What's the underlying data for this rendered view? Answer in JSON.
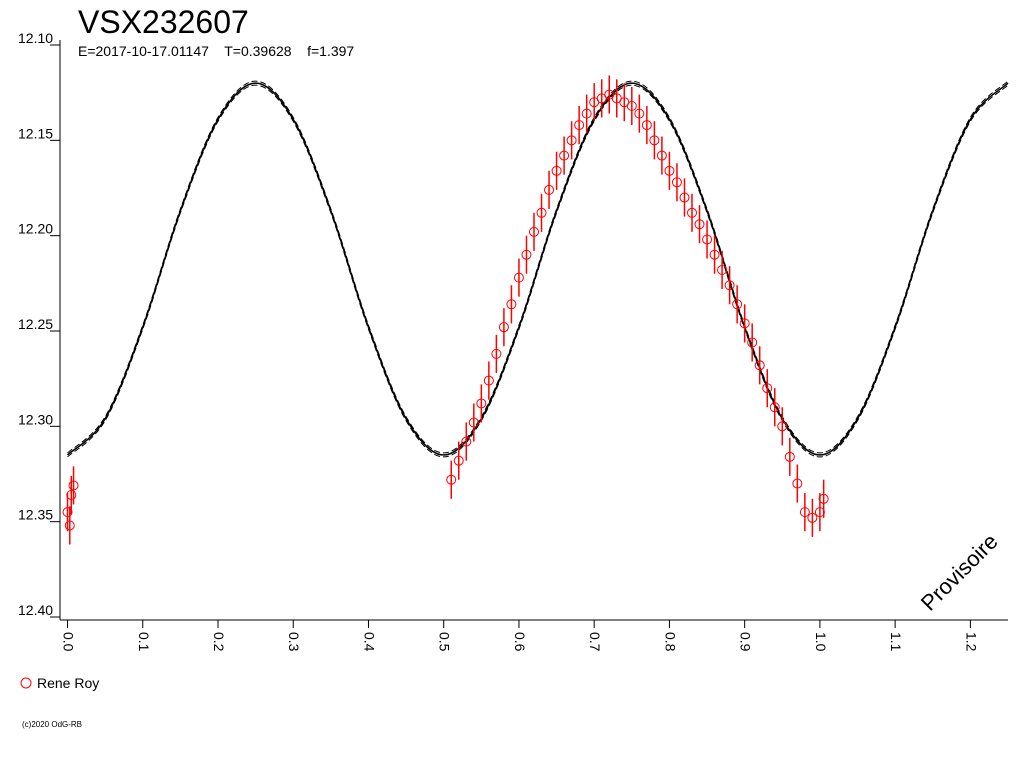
{
  "chart_data": {
    "type": "scatter",
    "title": "VSX232607",
    "subtitle": "E=2017-10-17.01147    T=0.39628    f=1.397",
    "annotation": "Provisoire",
    "footer": "(c)2020 OdG-RB",
    "xlim": [
      -0.01,
      1.25
    ],
    "ylim": [
      12.1,
      12.4
    ],
    "invert_y": true,
    "xticks": [
      {
        "value": 0,
        "label": "0.0"
      },
      0.1,
      0.2,
      0.3,
      0.4,
      0.5,
      0.6,
      0.7,
      0.8,
      0.9,
      {
        "value": 1,
        "label": "1.0"
      },
      1.1,
      1.2
    ],
    "yticks": [
      {
        "value": 12.1,
        "label": "12.10"
      },
      12.15,
      {
        "value": 12.2,
        "label": "12.20"
      },
      12.25,
      {
        "value": 12.3,
        "label": "12.30"
      },
      12.35,
      {
        "value": 12.4,
        "label": "12.40"
      }
    ],
    "legend": "bottom-left",
    "model": {
      "color": "#000000",
      "x": [
        0,
        0.05,
        0.1,
        0.15,
        0.2,
        0.25,
        0.3,
        0.35,
        0.4,
        0.45,
        0.5,
        0.55,
        0.6,
        0.65,
        0.7,
        0.75,
        0.8,
        0.85,
        0.9,
        0.95,
        1.0,
        1.05,
        1.1,
        1.15,
        1.2,
        1.25
      ],
      "values": [
        12.315,
        12.296,
        12.248,
        12.187,
        12.139,
        12.12,
        12.139,
        12.187,
        12.248,
        12.296,
        12.315,
        12.296,
        12.248,
        12.187,
        12.139,
        12.12,
        12.139,
        12.187,
        12.248,
        12.296,
        12.315,
        12.296,
        12.248,
        12.187,
        12.139,
        12.12
      ]
    },
    "series": [
      {
        "name": "Rene Roy",
        "color": "#ff0000",
        "error": 0.01,
        "x": [
          0.0,
          0.003,
          0.005,
          0.008,
          0.51,
          0.52,
          0.53,
          0.54,
          0.55,
          0.56,
          0.57,
          0.58,
          0.59,
          0.6,
          0.61,
          0.62,
          0.63,
          0.64,
          0.65,
          0.66,
          0.67,
          0.68,
          0.69,
          0.7,
          0.71,
          0.72,
          0.73,
          0.74,
          0.75,
          0.76,
          0.77,
          0.78,
          0.79,
          0.8,
          0.81,
          0.82,
          0.83,
          0.84,
          0.85,
          0.86,
          0.87,
          0.88,
          0.89,
          0.9,
          0.91,
          0.92,
          0.93,
          0.94,
          0.95,
          0.96,
          0.97,
          0.98,
          0.99,
          1.0,
          1.005
        ],
        "values": [
          12.345,
          12.352,
          12.336,
          12.331,
          12.328,
          12.318,
          12.308,
          12.298,
          12.288,
          12.276,
          12.262,
          12.248,
          12.236,
          12.222,
          12.21,
          12.198,
          12.188,
          12.176,
          12.166,
          12.158,
          12.15,
          12.142,
          12.136,
          12.13,
          12.128,
          12.126,
          12.128,
          12.13,
          12.132,
          12.136,
          12.142,
          12.15,
          12.158,
          12.166,
          12.172,
          12.18,
          12.188,
          12.194,
          12.202,
          12.21,
          12.218,
          12.226,
          12.236,
          12.246,
          12.256,
          12.268,
          12.28,
          12.29,
          12.3,
          12.316,
          12.33,
          12.345,
          12.348,
          12.345,
          12.338
        ]
      }
    ]
  }
}
